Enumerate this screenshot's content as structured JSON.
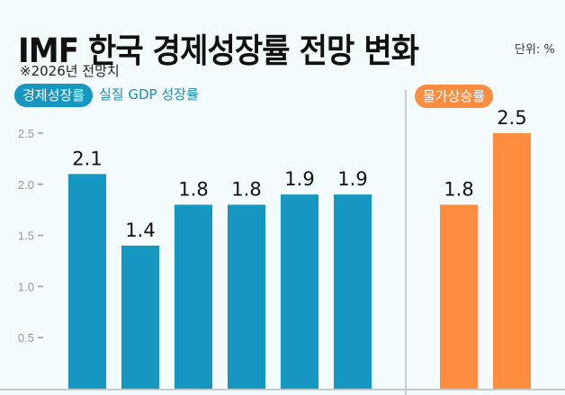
{
  "chart_data": {
    "type": "bar",
    "title": "IMF 한국 경제성장률 전망 변화",
    "subtitle": "※2026년 전망치",
    "unit": "단위: %",
    "ylim": [
      0,
      2.5
    ],
    "yticks": [
      "2.5",
      "2.0",
      "1.5",
      "1.0",
      "0.5"
    ],
    "grid": false,
    "groups": [
      {
        "label": "경제성장률",
        "description": "실질 GDP 성장률",
        "color": "#1597c1",
        "values": [
          2.1,
          1.4,
          1.8,
          1.8,
          1.9,
          1.9
        ],
        "value_labels": [
          "2.1",
          "1.4",
          "1.8",
          "1.8",
          "1.9",
          "1.9"
        ]
      },
      {
        "label": "물가상승률",
        "color": "#ff8d3f",
        "values": [
          1.8,
          2.5
        ],
        "value_labels": [
          "1.8",
          "2.5"
        ]
      }
    ]
  }
}
